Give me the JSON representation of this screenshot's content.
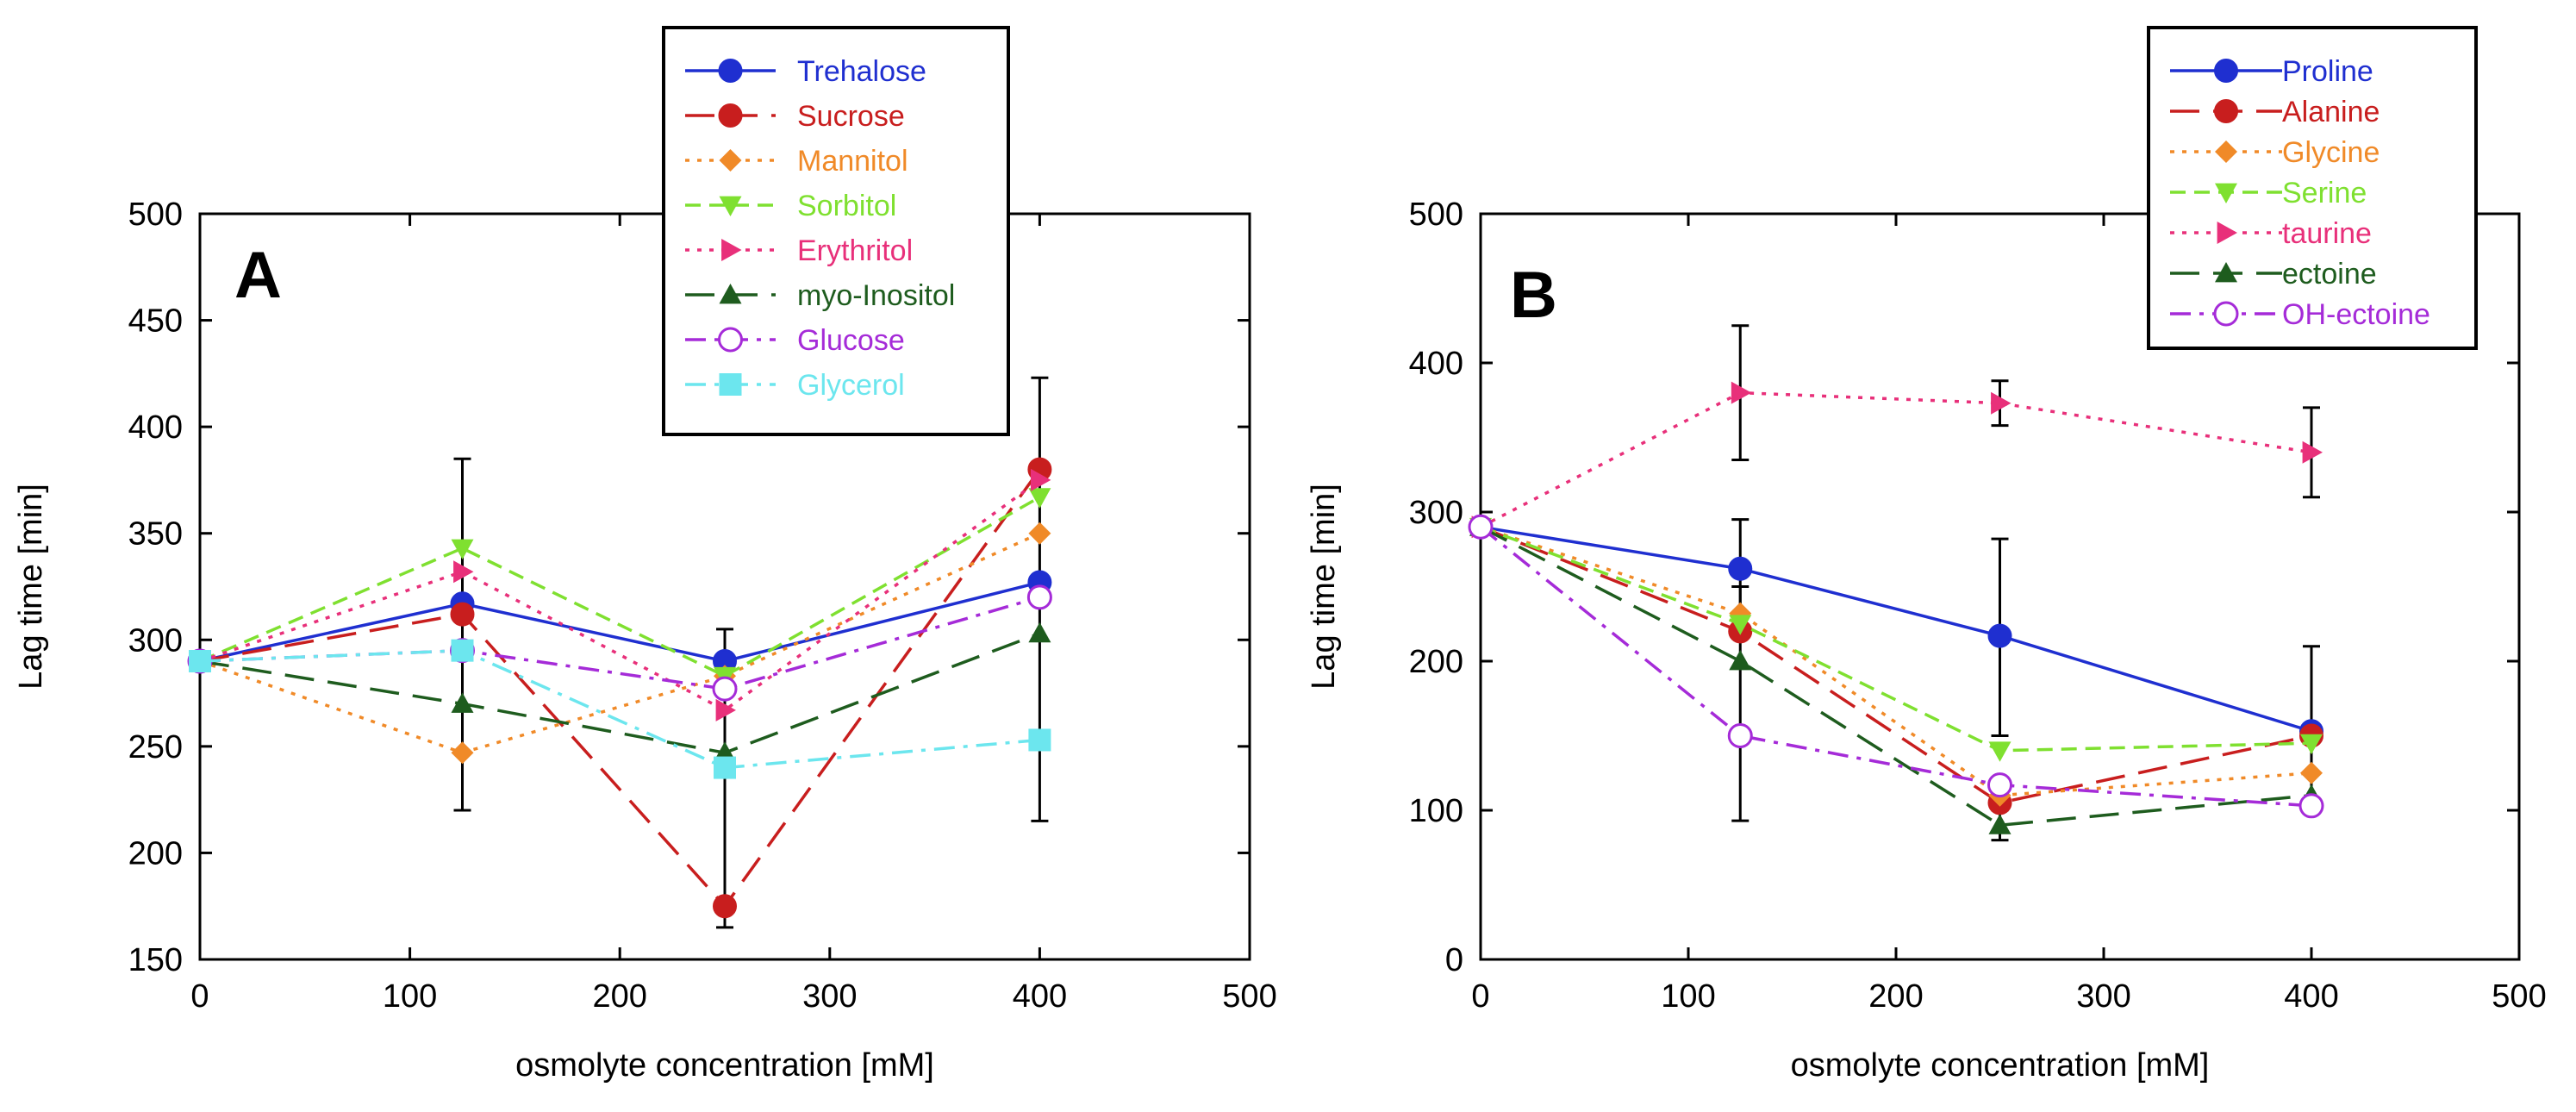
{
  "chart_data": [
    {
      "type": "line",
      "panel_label": "A",
      "xlabel": "osmolyte concentration [mM]",
      "ylabel": "Lag time [min]",
      "xlim": [
        0,
        500
      ],
      "ylim": [
        150,
        500
      ],
      "x_ticks": [
        "0",
        "100",
        "200",
        "300",
        "400",
        "500"
      ],
      "y_ticks": [
        "150",
        "200",
        "250",
        "300",
        "350",
        "400",
        "450",
        "500"
      ],
      "grid": false,
      "legend_position": "top-right",
      "x": [
        0,
        125,
        250,
        400
      ],
      "series": [
        {
          "name": "Trehalose",
          "color": "#1f2fd0",
          "dash": "solid",
          "marker": "circle",
          "values": [
            290,
            317,
            290,
            327
          ],
          "errors": [
            0,
            0,
            10,
            0
          ]
        },
        {
          "name": "Sucrose",
          "color": "#c81e1e",
          "dash": "longdash",
          "marker": "circle",
          "values": [
            290,
            312,
            175,
            380
          ],
          "errors": [
            0,
            0,
            0,
            0
          ]
        },
        {
          "name": "Mannitol",
          "color": "#f08a28",
          "dash": "dot",
          "marker": "diamond",
          "values": [
            290,
            247,
            283,
            350
          ],
          "errors": [
            0,
            0,
            0,
            0
          ]
        },
        {
          "name": "Sorbitol",
          "color": "#7fe030",
          "dash": "dash",
          "marker": "triangle-down",
          "values": [
            290,
            343,
            283,
            367
          ],
          "errors": [
            0,
            0,
            0,
            0
          ]
        },
        {
          "name": "Erythritol",
          "color": "#e8307a",
          "dash": "dot",
          "marker": "triangle-right",
          "values": [
            290,
            332,
            267,
            375
          ],
          "errors": [
            0,
            0,
            0,
            0
          ]
        },
        {
          "name": "myo-Inositol",
          "color": "#1e5c1e",
          "dash": "longdash",
          "marker": "triangle-up",
          "values": [
            290,
            270,
            247,
            303
          ],
          "errors": [
            0,
            0,
            0,
            0
          ]
        },
        {
          "name": "Glucose",
          "color": "#a52bd8",
          "dash": "dashdot",
          "marker": "open-circle",
          "values": [
            290,
            295,
            277,
            320
          ],
          "errors": [
            0,
            0,
            0,
            0
          ]
        },
        {
          "name": "Glycerol",
          "color": "#6ce6ee",
          "dash": "dashdot",
          "marker": "square",
          "values": [
            290,
            295,
            240,
            253
          ],
          "errors": [
            0,
            0,
            0,
            0
          ]
        }
      ],
      "error_bars": [
        {
          "x": 125,
          "low": 220,
          "high": 385
        },
        {
          "x": 250,
          "low": 165,
          "high": 305
        },
        {
          "x": 400,
          "low": 215,
          "high": 423
        }
      ]
    },
    {
      "type": "line",
      "panel_label": "B",
      "xlabel": "osmolyte concentration [mM]",
      "ylabel": "Lag time [min]",
      "xlim": [
        0,
        500
      ],
      "ylim": [
        0,
        500
      ],
      "x_ticks": [
        "0",
        "100",
        "200",
        "300",
        "400",
        "500"
      ],
      "y_ticks": [
        "0",
        "100",
        "200",
        "300",
        "400",
        "500"
      ],
      "grid": false,
      "legend_position": "top-right",
      "x": [
        0,
        125,
        250,
        400
      ],
      "series": [
        {
          "name": "Proline",
          "color": "#1f2fd0",
          "dash": "solid",
          "marker": "circle",
          "values": [
            290,
            262,
            217,
            153
          ]
        },
        {
          "name": "Alanine",
          "color": "#c81e1e",
          "dash": "longdash",
          "marker": "circle",
          "values": [
            290,
            220,
            105,
            150
          ]
        },
        {
          "name": "Glycine",
          "color": "#f08a28",
          "dash": "dot",
          "marker": "diamond",
          "values": [
            290,
            232,
            110,
            125
          ]
        },
        {
          "name": "Serine",
          "color": "#7fe030",
          "dash": "dash",
          "marker": "triangle-down",
          "values": [
            290,
            225,
            140,
            145
          ]
        },
        {
          "name": "taurine",
          "color": "#e8307a",
          "dash": "dot",
          "marker": "triangle-right",
          "values": [
            290,
            380,
            373,
            340
          ]
        },
        {
          "name": "ectoine",
          "color": "#1e5c1e",
          "dash": "longdash",
          "marker": "triangle-up",
          "values": [
            290,
            200,
            90,
            110
          ]
        },
        {
          "name": "OH-ectoine",
          "color": "#a52bd8",
          "dash": "dashdot",
          "marker": "open-circle",
          "values": [
            290,
            150,
            117,
            103
          ]
        }
      ],
      "error_bars": [
        {
          "x": 125,
          "low": 335,
          "high": 425
        },
        {
          "x": 250,
          "low": 358,
          "high": 388
        },
        {
          "x": 400,
          "low": 310,
          "high": 370
        },
        {
          "x": 125,
          "low": 230,
          "high": 295
        },
        {
          "x": 250,
          "low": 150,
          "high": 282
        },
        {
          "x": 400,
          "low": 100,
          "high": 210
        },
        {
          "x": 125,
          "low": 93,
          "high": 250
        },
        {
          "x": 250,
          "low": 80,
          "high": 100
        }
      ]
    }
  ]
}
